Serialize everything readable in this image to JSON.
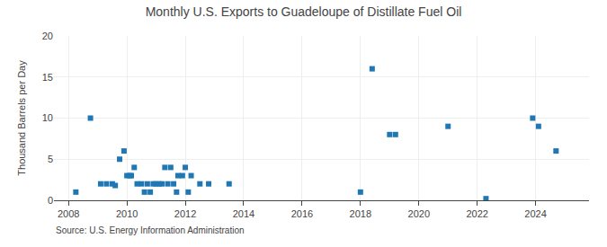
{
  "chart_data": {
    "type": "scatter",
    "title": "Monthly U.S. Exports to Guadeloupe of Distillate Fuel Oil",
    "y_label": "Thousand Barrels per Day",
    "annotations": [
      "Source: U.S. Energy Information Administration"
    ],
    "marker": "square",
    "x": [
      2008.25,
      2008.75,
      2009.1,
      2009.3,
      2009.5,
      2009.6,
      2009.75,
      2009.9,
      2010.0,
      2010.1,
      2010.15,
      2010.25,
      2010.35,
      2010.5,
      2010.6,
      2010.7,
      2010.8,
      2010.9,
      2011.0,
      2011.1,
      2011.2,
      2011.3,
      2011.4,
      2011.5,
      2011.6,
      2011.7,
      2011.75,
      2011.9,
      2012.0,
      2012.1,
      2012.2,
      2012.5,
      2012.8,
      2013.5,
      2018.0,
      2018.4,
      2019.0,
      2019.2,
      2021.0,
      2022.3,
      2023.9,
      2024.1,
      2024.7
    ],
    "values": [
      1.0,
      10.0,
      2.0,
      2.0,
      2.0,
      1.8,
      5.0,
      6.0,
      3.0,
      3.0,
      3.0,
      4.0,
      2.0,
      2.0,
      1.0,
      2.0,
      1.0,
      2.0,
      2.0,
      2.0,
      2.0,
      4.0,
      2.0,
      4.0,
      2.0,
      1.0,
      3.0,
      3.0,
      4.0,
      1.0,
      3.0,
      2.0,
      2.0,
      2.0,
      1.0,
      16.0,
      8.0,
      8.0,
      9.0,
      0.2,
      10.0,
      9.0,
      6.0
    ],
    "xlim": [
      2007.5,
      2025.83
    ],
    "xticks": [
      2008,
      2010,
      2012,
      2014,
      2016,
      2018,
      2020,
      2022,
      2024
    ],
    "ylim": [
      0,
      20
    ],
    "yticks": [
      0,
      5,
      10,
      15,
      20
    ],
    "grid": true
  }
}
